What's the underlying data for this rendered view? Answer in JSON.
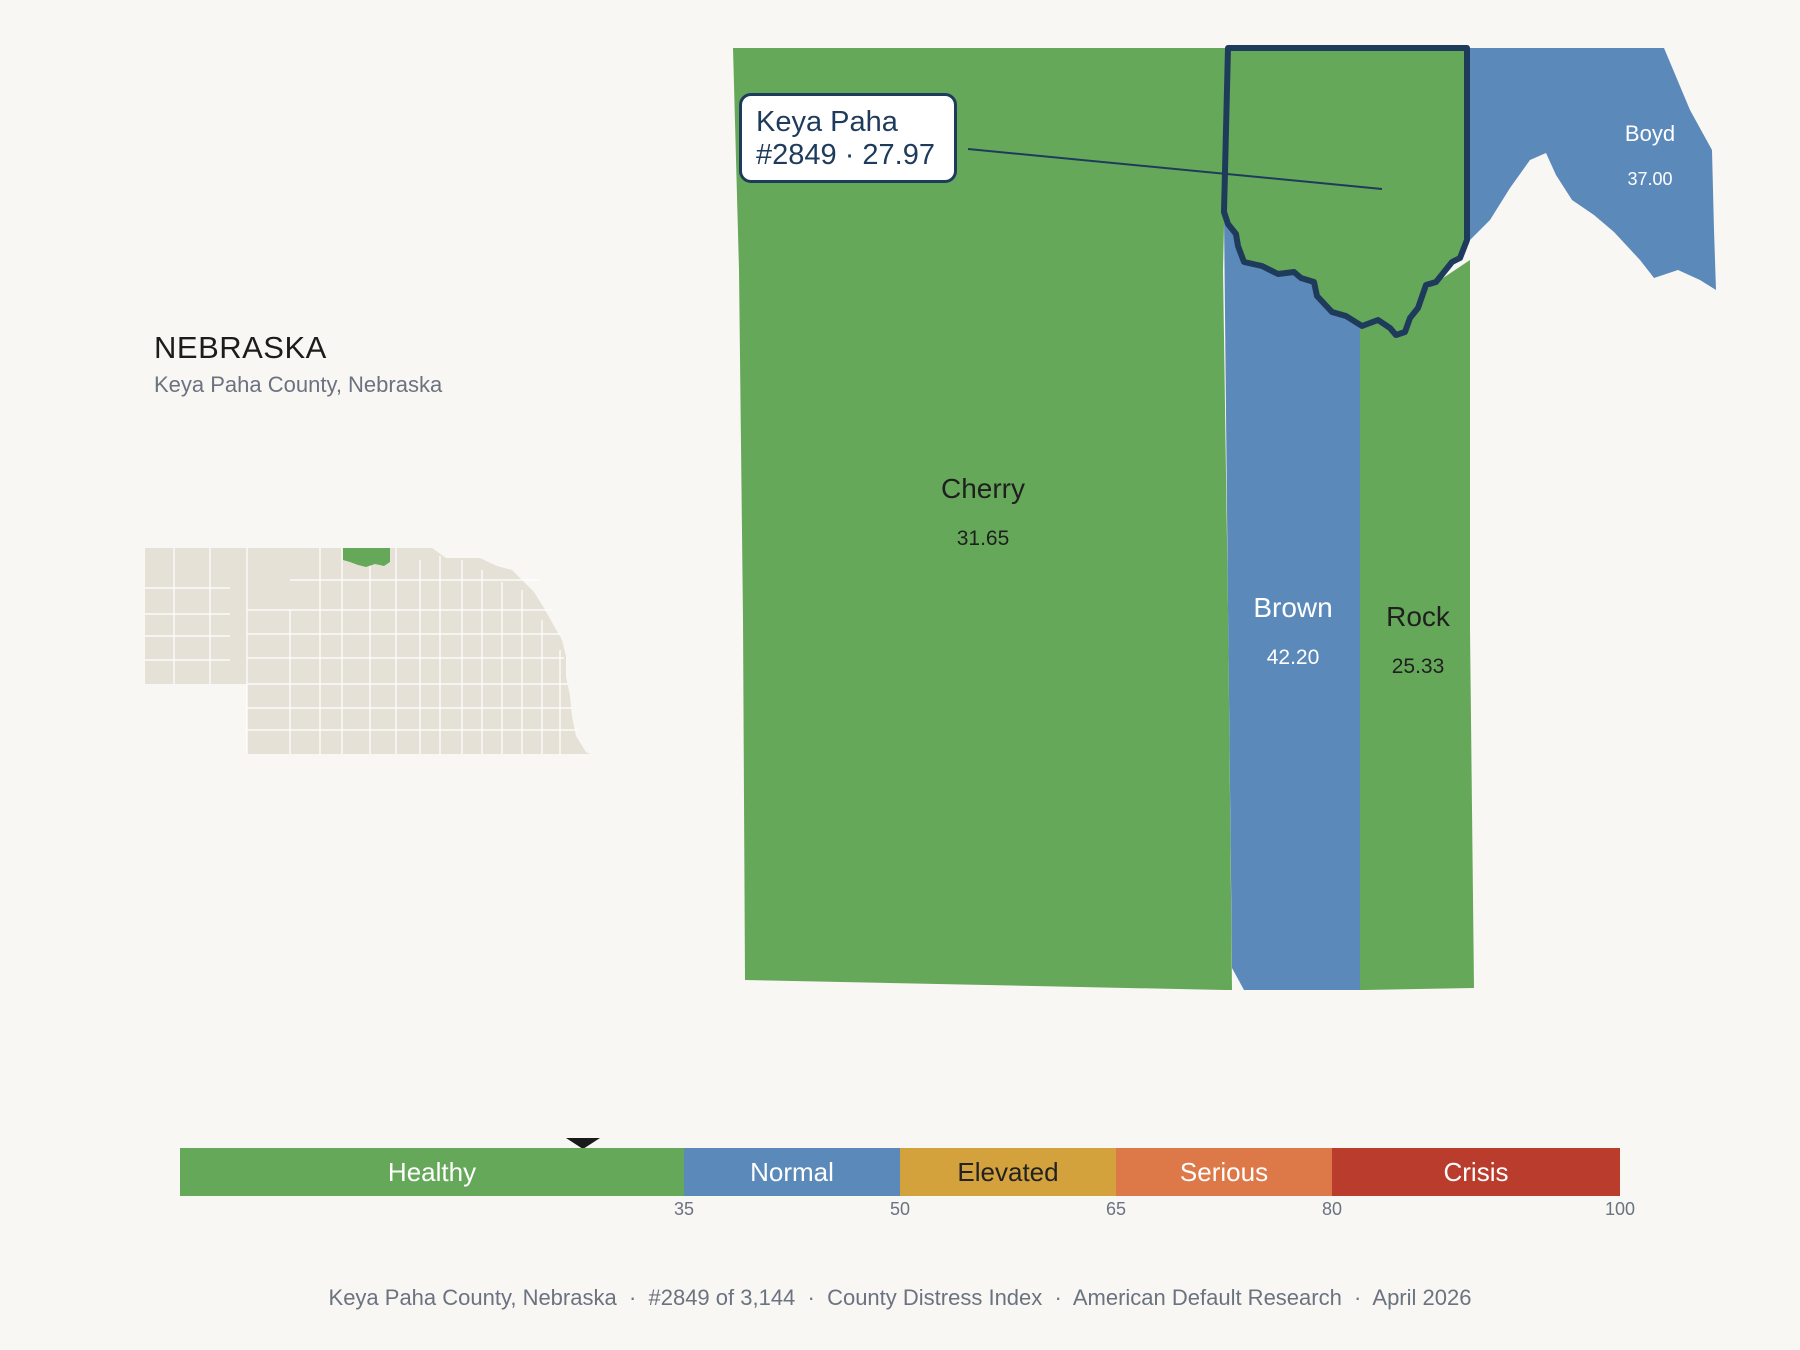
{
  "state": {
    "title": "NEBRASKA",
    "subtitle": "Keya Paha County, Nebraska"
  },
  "callout": {
    "line1": "Keya Paha",
    "line2": "#2849 · 27.97"
  },
  "counties": [
    {
      "name": "Cherry",
      "value": "31.65",
      "category": "Healthy",
      "color": "#66a85a"
    },
    {
      "name": "Brown",
      "value": "42.20",
      "category": "Normal",
      "color": "#5b8aba"
    },
    {
      "name": "Rock",
      "value": "25.33",
      "category": "Healthy",
      "color": "#66a85a"
    },
    {
      "name": "Boyd",
      "value": "37.00",
      "category": "Normal",
      "color": "#5b8aba"
    },
    {
      "name": "Keya Paha",
      "value": "27.97",
      "rank": "#2849",
      "category": "Healthy",
      "color": "#66a85a",
      "highlighted": true
    }
  ],
  "scale": {
    "segments": [
      {
        "label": "Healthy",
        "color": "#66a85a",
        "from": 0,
        "to": 35
      },
      {
        "label": "Normal",
        "color": "#5b8aba",
        "from": 35,
        "to": 50
      },
      {
        "label": "Elevated",
        "color": "#d4a23c",
        "from": 50,
        "to": 65
      },
      {
        "label": "Serious",
        "color": "#dd7848",
        "from": 65,
        "to": 80
      },
      {
        "label": "Crisis",
        "color": "#b93c2c",
        "from": 80,
        "to": 100
      }
    ],
    "ticks": [
      "35",
      "50",
      "65",
      "80",
      "100"
    ],
    "marker_value": 27.97
  },
  "colors": {
    "highlight_outline": "#1f3b5c",
    "inset_state": "#e6e1d7",
    "background": "#f9f7f3"
  },
  "footer": "Keya Paha County, Nebraska  ·  #2849 of 3,144  ·  County Distress Index  ·  American Default Research  ·  April 2026"
}
